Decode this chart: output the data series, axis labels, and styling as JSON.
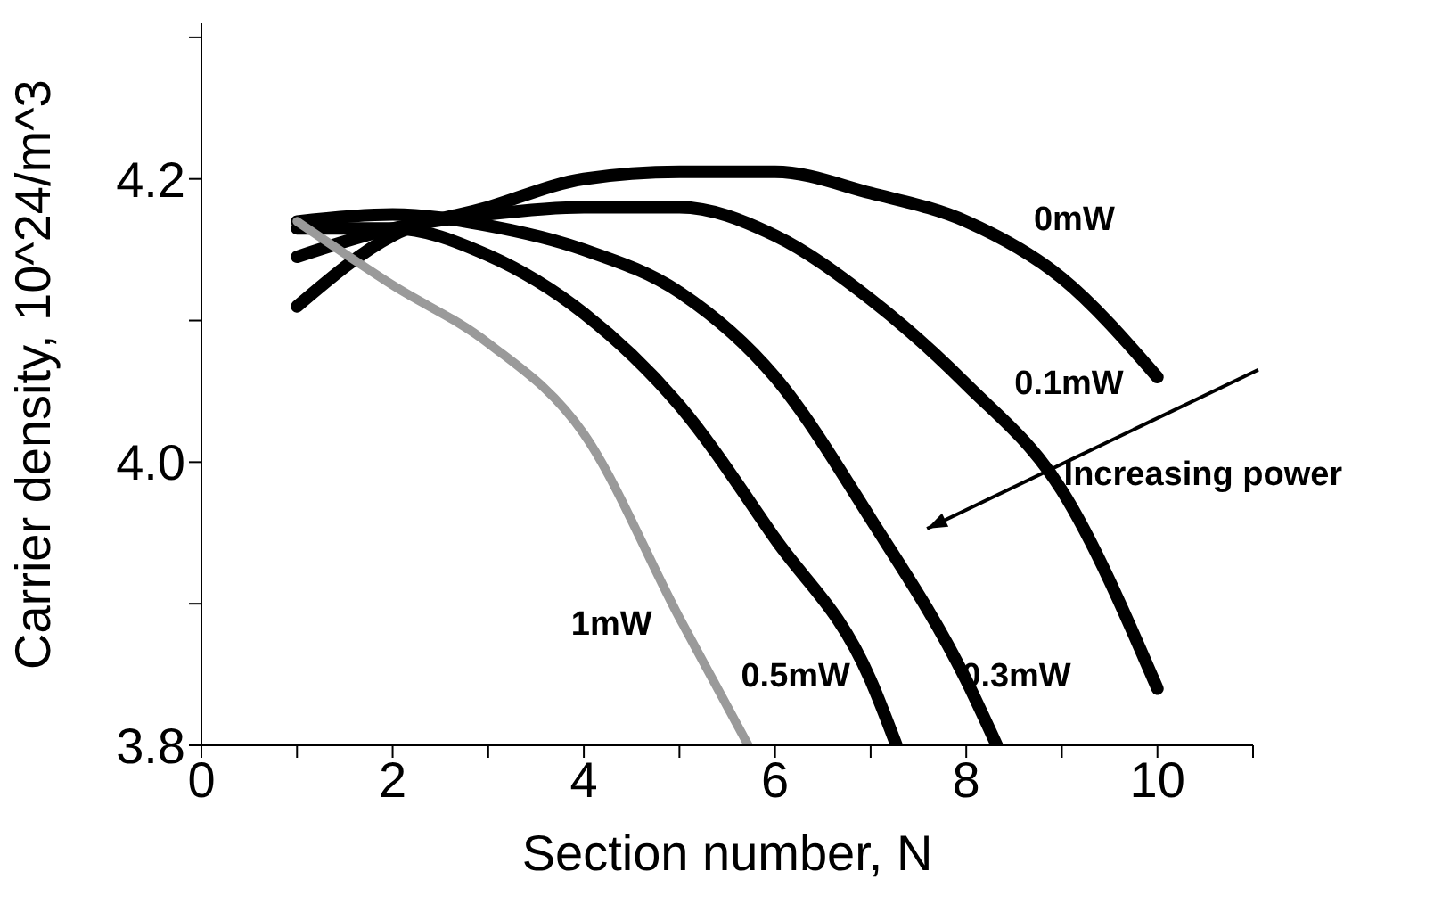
{
  "chart_data": {
    "type": "line",
    "xlabel": "Section number, N",
    "ylabel": "Carrier density, 10^24/m^3",
    "xlim": [
      0,
      11
    ],
    "xticks": [
      0,
      {
        "value": 1,
        "label": null
      },
      2,
      {
        "value": 3,
        "label": null
      },
      4,
      {
        "value": 5,
        "label": null
      },
      6,
      {
        "value": 7,
        "label": null
      },
      8,
      {
        "value": 9,
        "label": null
      },
      10,
      {
        "value": 11,
        "label": null
      }
    ],
    "ylim": [
      3.8,
      4.31
    ],
    "yticks": [
      3.8,
      {
        "value": 3.9,
        "label": null
      },
      {
        "value": 4.0,
        "label": "4.0"
      },
      {
        "value": 4.1,
        "label": null
      },
      4.2,
      {
        "value": 4.3,
        "label": null
      }
    ],
    "marker": "none",
    "line_style": "solid",
    "series": [
      {
        "name": "0mW",
        "color": "#000000",
        "x": [
          1,
          2,
          3,
          4,
          5,
          6,
          7,
          8,
          9,
          10
        ],
        "values": [
          4.11,
          4.16,
          4.18,
          4.2,
          4.205,
          4.205,
          4.19,
          4.17,
          4.13,
          4.06
        ]
      },
      {
        "name": "0.1mW",
        "color": "#000000",
        "x": [
          1,
          2,
          3,
          4,
          5,
          6,
          7,
          8,
          9,
          10
        ],
        "values": [
          4.145,
          4.165,
          4.175,
          4.18,
          4.18,
          4.16,
          4.115,
          4.055,
          3.98,
          3.84
        ]
      },
      {
        "name": "0.3mW",
        "color": "#000000",
        "x": [
          1,
          2,
          3,
          4,
          5,
          6,
          7,
          8,
          8.32
        ],
        "values": [
          4.17,
          4.175,
          4.167,
          4.15,
          4.12,
          4.06,
          3.96,
          3.846,
          3.8
        ]
      },
      {
        "name": "0.5mW",
        "color": "#000000",
        "x": [
          1,
          2,
          3,
          4,
          5,
          6,
          7,
          7.27
        ],
        "values": [
          4.165,
          4.165,
          4.146,
          4.105,
          4.04,
          3.946,
          3.846,
          3.8
        ]
      },
      {
        "name": "1mW",
        "color": "#9a9a9a",
        "x": [
          1,
          2,
          3,
          4,
          5,
          5.72
        ],
        "values": [
          4.17,
          4.125,
          4.084,
          4.02,
          3.89,
          3.8
        ]
      }
    ],
    "annotations": [
      "Increasing power"
    ]
  }
}
